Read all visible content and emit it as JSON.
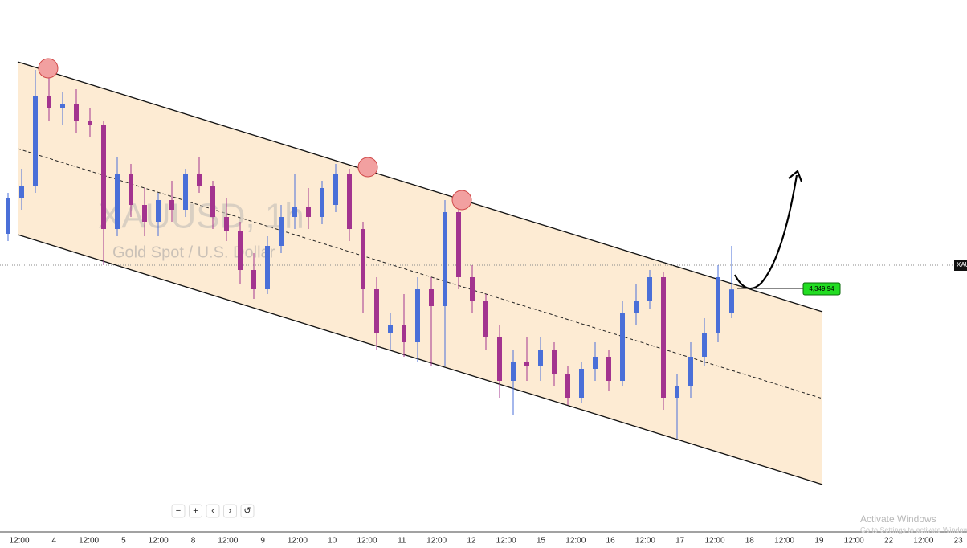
{
  "chart_data": {
    "type": "candlestick",
    "watermark_symbol": "XAUUSD, 1h",
    "watermark_name": "Gold Spot / U.S. Dollar",
    "symbol_tag": "XAU",
    "last_price": 4349.94,
    "last_price_label": "4,349.94",
    "ylim": [
      4250,
      4470
    ],
    "up_color": "#4a6fd8",
    "down_color": "#a3348f",
    "open": [
      4373,
      4388,
      4393,
      4430,
      4425,
      4427,
      4420,
      4418,
      4375,
      4398,
      4385,
      4378,
      4387,
      4383,
      4398,
      4393,
      4380,
      4374,
      4358,
      4350,
      4368,
      4380,
      4384,
      4380,
      4385,
      4398,
      4375,
      4350,
      4332,
      4335,
      4328,
      4350,
      4343,
      4382,
      4355,
      4345,
      4330,
      4312,
      4320,
      4318,
      4325,
      4315,
      4305,
      4317,
      4322,
      4312,
      4340,
      4345,
      4355,
      4305,
      4310,
      4322,
      4332,
      4340
    ],
    "high": [
      4390,
      4400,
      4441,
      4438,
      4432,
      4433,
      4425,
      4420,
      4405,
      4402,
      4392,
      4390,
      4395,
      4400,
      4405,
      4395,
      4388,
      4378,
      4365,
      4372,
      4385,
      4398,
      4392,
      4395,
      4402,
      4400,
      4378,
      4355,
      4340,
      4348,
      4355,
      4355,
      4387,
      4385,
      4360,
      4348,
      4335,
      4325,
      4330,
      4330,
      4328,
      4318,
      4320,
      4328,
      4325,
      4345,
      4352,
      4358,
      4357,
      4315,
      4328,
      4338,
      4360,
      4368
    ],
    "low": [
      4370,
      4383,
      4390,
      4420,
      4418,
      4415,
      4413,
      4360,
      4372,
      4380,
      4372,
      4372,
      4378,
      4380,
      4390,
      4375,
      4370,
      4352,
      4346,
      4348,
      4365,
      4375,
      4375,
      4377,
      4382,
      4370,
      4340,
      4325,
      4325,
      4322,
      4320,
      4318,
      4318,
      4350,
      4340,
      4325,
      4305,
      4298,
      4312,
      4312,
      4310,
      4302,
      4303,
      4312,
      4308,
      4310,
      4335,
      4342,
      4300,
      4288,
      4305,
      4318,
      4328,
      4338
    ],
    "close": [
      4388,
      4393,
      4430,
      4425,
      4427,
      4420,
      4418,
      4375,
      4398,
      4385,
      4378,
      4387,
      4383,
      4398,
      4393,
      4380,
      4374,
      4358,
      4350,
      4368,
      4380,
      4384,
      4380,
      4392,
      4398,
      4375,
      4350,
      4332,
      4335,
      4328,
      4350,
      4343,
      4382,
      4355,
      4345,
      4330,
      4312,
      4320,
      4318,
      4325,
      4315,
      4305,
      4317,
      4322,
      4312,
      4340,
      4345,
      4355,
      4305,
      4310,
      4322,
      4332,
      4355,
      4349.94
    ],
    "xtick_labels": [
      "12:00",
      "4",
      "12:00",
      "5",
      "12:00",
      "8",
      "12:00",
      "9",
      "12:00",
      "10",
      "12:00",
      "11",
      "12:00",
      "12",
      "12:00",
      "15",
      "12:00",
      "16",
      "12:00",
      "17",
      "12:00",
      "18",
      "12:00",
      "19",
      "12:00",
      "22",
      "12:00",
      "23"
    ]
  },
  "controls": [
    "−",
    "+",
    "‹",
    "›",
    "↺"
  ],
  "os_notice": {
    "title": "Activate Windows",
    "text": "Go to Settings to activate Windows."
  }
}
